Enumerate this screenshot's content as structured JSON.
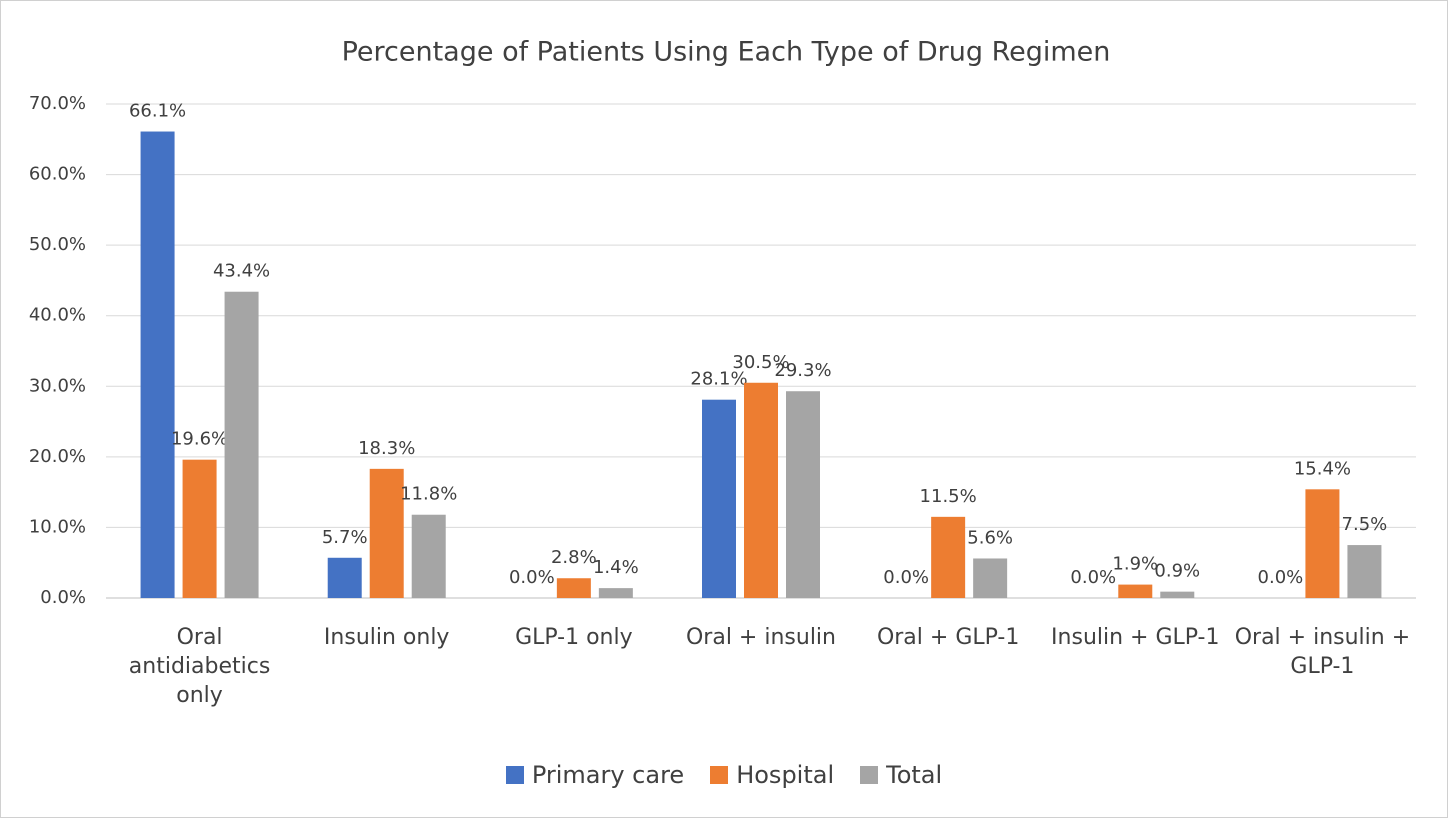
{
  "chart_data": {
    "type": "bar",
    "title": "Percentage of Patients Using Each Type of Drug Regimen",
    "categories": [
      "Oral antidiabetics only",
      "Insulin only",
      "GLP-1 only",
      "Oral + insulin",
      "Oral + GLP-1",
      "Insulin + GLP-1",
      "Oral + insulin + GLP-1"
    ],
    "series": [
      {
        "name": "Primary care",
        "color": "#4472c4",
        "values": [
          66.1,
          5.7,
          0,
          28.1,
          0,
          0,
          0
        ],
        "value_labels": [
          "66.1%",
          "5.7%",
          "0.0%",
          "28.1%",
          "0.0%",
          "0.0%",
          "0.0%"
        ]
      },
      {
        "name": "Hospital",
        "color": "#ed7d31",
        "values": [
          19.6,
          18.3,
          2.8,
          30.5,
          11.5,
          1.9,
          15.4
        ],
        "value_labels": [
          "19.6%",
          "18.3%",
          "2.8%",
          "30.5%",
          "11.5%",
          "1.9%",
          "15.4%"
        ]
      },
      {
        "name": "Total",
        "color": "#a5a5a5",
        "values": [
          43.4,
          11.8,
          1.4,
          29.3,
          5.6,
          0.9,
          7.5
        ],
        "value_labels": [
          "43.4%",
          "11.8%",
          "1.4%",
          "29.3%",
          "5.6%",
          "0.9%",
          "7.5%"
        ]
      }
    ],
    "ylim": [
      0,
      70
    ],
    "yticks": [
      {
        "value": 0,
        "label": "0.0%"
      },
      {
        "value": 10,
        "label": "10.0%"
      },
      {
        "value": 20,
        "label": "20.0%"
      },
      {
        "value": 30,
        "label": "30.0%"
      },
      {
        "value": 40,
        "label": "40.0%"
      },
      {
        "value": 50,
        "label": "50.0%"
      },
      {
        "value": 60,
        "label": "60.0%"
      },
      {
        "value": 70,
        "label": "70.0%"
      }
    ],
    "grid": true,
    "legend": "bottom"
  }
}
